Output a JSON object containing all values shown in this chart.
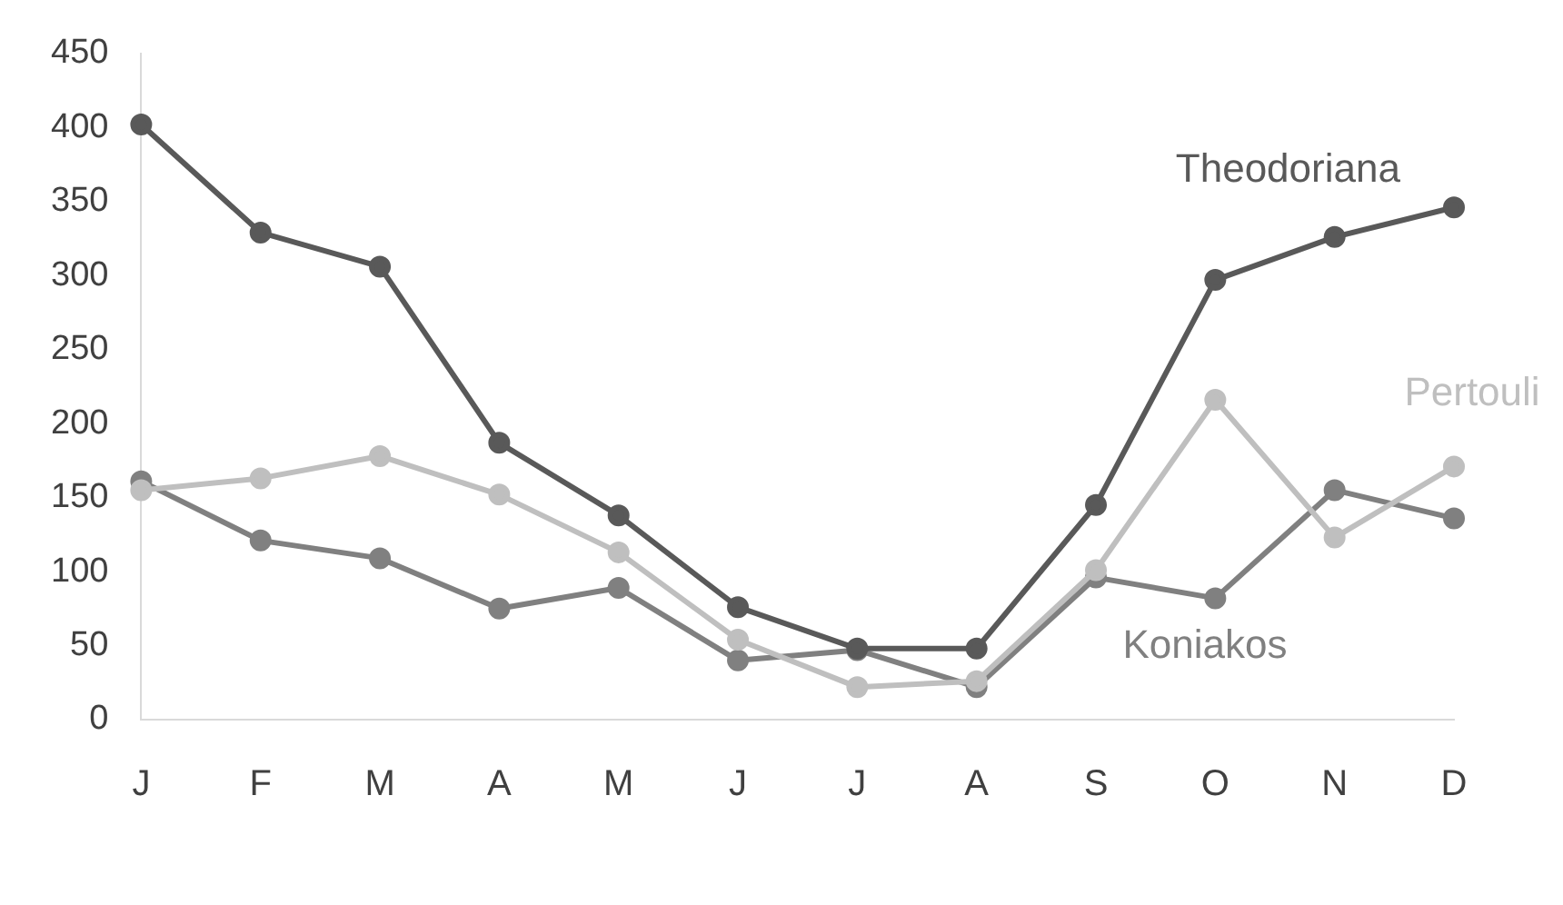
{
  "chart_data": {
    "type": "line",
    "categories": [
      "J",
      "F",
      "M",
      "A",
      "M",
      "J",
      "J",
      "A",
      "S",
      "O",
      "N",
      "D"
    ],
    "series": [
      {
        "name": "Theodoriana",
        "color": "#595959",
        "values": [
          402,
          329,
          306,
          187,
          138,
          76,
          48,
          48,
          145,
          297,
          326,
          346
        ]
      },
      {
        "name": "Pertouli",
        "color": "#bfbfbf",
        "values": [
          155,
          163,
          178,
          152,
          113,
          54,
          22,
          26,
          101,
          216,
          123,
          171
        ]
      },
      {
        "name": "Koniakos",
        "color": "#808080",
        "values": [
          161,
          121,
          109,
          75,
          89,
          40,
          47,
          22,
          96,
          82,
          155,
          136
        ]
      }
    ],
    "ylim": [
      0,
      450
    ],
    "yticks": [
      0,
      50,
      100,
      150,
      200,
      250,
      300,
      350,
      400,
      450
    ],
    "grid": false,
    "legend": false,
    "marker": "circle",
    "line_style": "solid"
  }
}
